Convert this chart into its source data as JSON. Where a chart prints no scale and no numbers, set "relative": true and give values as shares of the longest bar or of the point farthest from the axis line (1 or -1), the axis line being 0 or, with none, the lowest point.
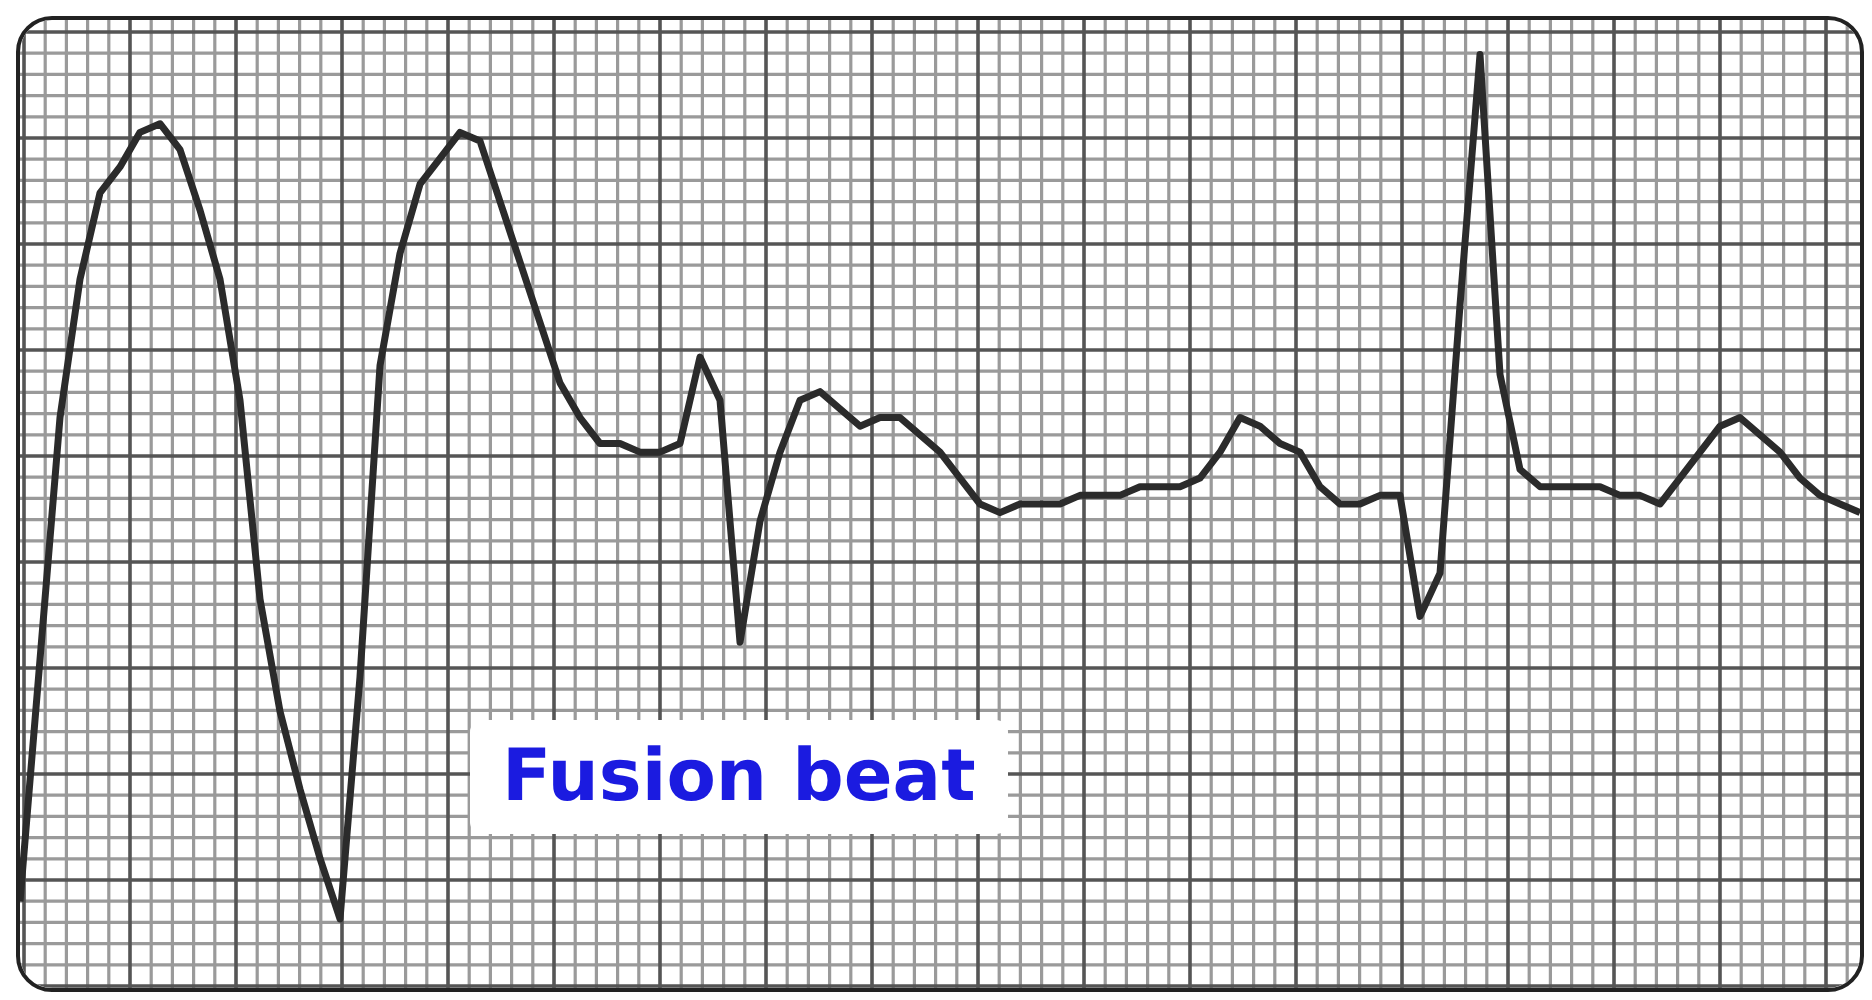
{
  "chart_data": {
    "type": "line",
    "relative": true,
    "grid": true,
    "tick_labels": false,
    "annotations": [
      "Fusion beat"
    ],
    "categories": [
      null,
      null,
      null,
      null,
      null,
      null,
      null,
      null,
      null,
      null,
      null,
      null,
      null,
      null,
      null,
      null,
      null,
      null,
      null,
      null,
      null,
      null,
      null,
      null,
      null,
      null,
      null,
      null,
      null,
      null,
      null,
      null,
      null,
      null,
      null,
      null,
      null,
      null,
      null,
      null,
      null,
      null,
      null,
      null,
      null,
      null,
      null,
      null,
      null,
      null,
      null,
      null,
      null,
      null,
      null,
      null,
      null,
      null,
      null,
      null,
      null,
      null,
      null,
      null,
      null,
      null,
      null,
      null,
      null,
      null,
      null,
      null,
      null,
      null,
      null,
      null,
      null,
      null,
      null,
      null,
      null,
      null,
      null,
      null,
      null,
      null,
      null,
      null,
      null,
      null,
      null,
      null,
      null
    ],
    "series": [
      {
        "color": "#2b2b2b",
        "values": [
          0.02,
          0.3,
          0.58,
          0.74,
          0.84,
          0.87,
          0.91,
          0.92,
          0.89,
          0.82,
          0.74,
          0.6,
          0.37,
          0.24,
          0.15,
          0.07,
          0,
          0.28,
          0.64,
          0.77,
          0.85,
          0.88,
          0.91,
          0.9,
          0.83,
          0.76,
          0.69,
          0.62,
          0.58,
          0.55,
          0.55,
          0.54,
          0.54,
          0.55,
          0.65,
          0.6,
          0.32,
          0.46,
          0.54,
          0.6,
          0.61,
          0.59,
          0.57,
          0.58,
          0.58,
          0.56,
          0.54,
          0.51,
          0.48,
          0.47,
          0.48,
          0.48,
          0.48,
          0.49,
          0.49,
          0.49,
          0.5,
          0.5,
          0.5,
          0.51,
          0.54,
          0.58,
          0.57,
          0.55,
          0.54,
          0.5,
          0.48,
          0.48,
          0.49,
          0.49,
          0.35,
          0.4,
          0.71,
          1,
          0.63,
          0.52,
          0.5,
          0.5,
          0.5,
          0.5,
          0.49,
          0.49,
          0.48,
          0.51,
          0.54,
          0.57,
          0.58,
          0.56,
          0.54,
          0.51,
          0.49,
          0.48,
          0.47
        ]
      }
    ]
  }
}
